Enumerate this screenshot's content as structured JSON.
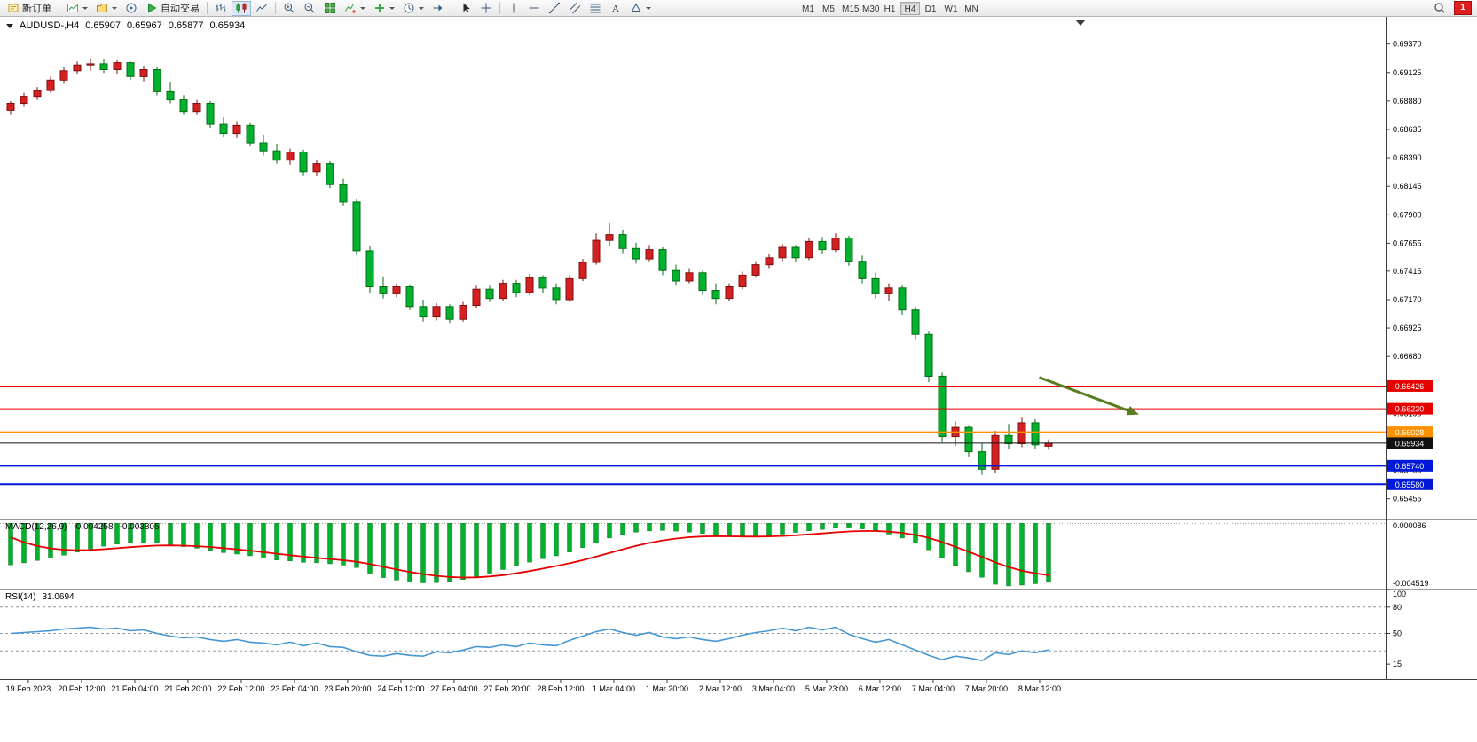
{
  "toolbar": {
    "items": [
      {
        "type": "button",
        "name": "new-order-button",
        "icon": "neworder",
        "label": "新订单"
      },
      {
        "type": "sep"
      },
      {
        "type": "icon",
        "name": "new-chart-button",
        "icon": "newchart",
        "dropdown": true
      },
      {
        "type": "icon",
        "name": "profiles-button",
        "icon": "profiles",
        "dropdown": true
      },
      {
        "type": "icon",
        "name": "market-watch-button",
        "icon": "market"
      },
      {
        "type": "button",
        "name": "auto-trading-button",
        "icon": "autotrade",
        "label": "自动交易"
      },
      {
        "type": "sep"
      },
      {
        "type": "icon",
        "name": "bar-chart-button",
        "icon": "bars"
      },
      {
        "type": "icon",
        "name": "candlestick-chart-button",
        "icon": "candles",
        "active": true
      },
      {
        "type": "icon",
        "name": "line-chart-button",
        "icon": "linechart"
      },
      {
        "type": "sep"
      },
      {
        "type": "icon",
        "name": "zoom-in-button",
        "icon": "zoomin"
      },
      {
        "type": "icon",
        "name": "zoom-out-button",
        "icon": "zoomout"
      },
      {
        "type": "icon",
        "name": "tile-windows-button",
        "icon": "tile"
      },
      {
        "type": "icon",
        "name": "indicators-button",
        "icon": "indicators",
        "dropdown": true
      },
      {
        "type": "icon",
        "name": "add-indicator-button",
        "icon": "plus",
        "dropdown": true
      },
      {
        "type": "icon",
        "name": "auto-scroll-button",
        "icon": "clock",
        "dropdown": true
      },
      {
        "type": "icon",
        "name": "chart-shift-button",
        "icon": "shift"
      },
      {
        "type": "sep"
      },
      {
        "type": "icon",
        "name": "cursor-button",
        "icon": "cursor"
      },
      {
        "type": "icon",
        "name": "crosshair-button",
        "icon": "crosshair"
      },
      {
        "type": "sep"
      },
      {
        "type": "icon",
        "name": "vertical-line-button",
        "icon": "vline"
      },
      {
        "type": "icon",
        "name": "horizontal-line-button",
        "icon": "hline"
      },
      {
        "type": "icon",
        "name": "trendline-button",
        "icon": "trend"
      },
      {
        "type": "icon",
        "name": "equidistant-channel-button",
        "icon": "channel"
      },
      {
        "type": "icon",
        "name": "fibonacci-button",
        "icon": "fibo"
      },
      {
        "type": "icon",
        "name": "text-label-button",
        "icon": "text"
      },
      {
        "type": "icon",
        "name": "arrows-button",
        "icon": "shapes",
        "dropdown": true
      },
      {
        "type": "gap"
      },
      {
        "type": "timeframes"
      }
    ],
    "timeframes": [
      "M1",
      "M5",
      "M15",
      "M30",
      "H1",
      "H4",
      "D1",
      "W1",
      "MN"
    ],
    "active_timeframe": "H4",
    "notification_count": "1"
  },
  "chart": {
    "title": "AUDUSD-,H4",
    "ohlc": {
      "open": "0.65907",
      "high": "0.65967",
      "low": "0.65877",
      "close": "0.65934"
    }
  },
  "chart_data": {
    "type": "candlestick",
    "symbol": "AUDUSD-",
    "period": "H4",
    "price_range": {
      "max": 0.6952,
      "min": 0.653
    },
    "price_axis_ticks": [
      0.6937,
      0.69125,
      0.6888,
      0.68635,
      0.6839,
      0.68145,
      0.679,
      0.67655,
      0.67415,
      0.6717,
      0.66925,
      0.6668,
      0.66435,
      0.6619,
      0.65945,
      0.657,
      0.65455
    ],
    "candles": [
      [
        0.688,
        0.6888,
        0.6876,
        0.6886
      ],
      [
        0.6886,
        0.6895,
        0.6883,
        0.6892
      ],
      [
        0.6892,
        0.69,
        0.6889,
        0.6897
      ],
      [
        0.6897,
        0.6909,
        0.6895,
        0.6906
      ],
      [
        0.6906,
        0.6917,
        0.6903,
        0.6914
      ],
      [
        0.6914,
        0.6922,
        0.6911,
        0.6919
      ],
      [
        0.6919,
        0.6925,
        0.6914,
        0.692
      ],
      [
        0.692,
        0.6924,
        0.6912,
        0.6915
      ],
      [
        0.6915,
        0.6923,
        0.6911,
        0.6921
      ],
      [
        0.6921,
        0.6922,
        0.6906,
        0.6909
      ],
      [
        0.6909,
        0.6918,
        0.6905,
        0.6915
      ],
      [
        0.6915,
        0.6917,
        0.6893,
        0.6896
      ],
      [
        0.6896,
        0.6904,
        0.6886,
        0.6889
      ],
      [
        0.6889,
        0.6893,
        0.6876,
        0.6879
      ],
      [
        0.6879,
        0.6889,
        0.6876,
        0.6886
      ],
      [
        0.6886,
        0.6888,
        0.6865,
        0.6868
      ],
      [
        0.6868,
        0.6874,
        0.6857,
        0.686
      ],
      [
        0.686,
        0.687,
        0.6856,
        0.6867
      ],
      [
        0.6867,
        0.6869,
        0.6849,
        0.6852
      ],
      [
        0.6852,
        0.6859,
        0.6841,
        0.6845
      ],
      [
        0.6845,
        0.6851,
        0.6834,
        0.6837
      ],
      [
        0.6837,
        0.6847,
        0.6833,
        0.6844
      ],
      [
        0.6844,
        0.6846,
        0.6824,
        0.6827
      ],
      [
        0.6827,
        0.6837,
        0.6823,
        0.6834
      ],
      [
        0.6834,
        0.6836,
        0.6813,
        0.6816
      ],
      [
        0.6816,
        0.6821,
        0.6798,
        0.6801
      ],
      [
        0.6801,
        0.6804,
        0.6755,
        0.6759
      ],
      [
        0.6759,
        0.6763,
        0.6723,
        0.6728
      ],
      [
        0.6728,
        0.6737,
        0.6718,
        0.6722
      ],
      [
        0.6722,
        0.6731,
        0.6719,
        0.6728
      ],
      [
        0.6728,
        0.673,
        0.6708,
        0.6711
      ],
      [
        0.6711,
        0.6717,
        0.6698,
        0.6702
      ],
      [
        0.6702,
        0.6714,
        0.6699,
        0.6711
      ],
      [
        0.6711,
        0.6713,
        0.6697,
        0.67
      ],
      [
        0.67,
        0.6715,
        0.6698,
        0.6712
      ],
      [
        0.6712,
        0.6729,
        0.671,
        0.6726
      ],
      [
        0.6726,
        0.6729,
        0.6715,
        0.6718
      ],
      [
        0.6718,
        0.6734,
        0.6716,
        0.6731
      ],
      [
        0.6731,
        0.6734,
        0.6719,
        0.6723
      ],
      [
        0.6723,
        0.6739,
        0.6721,
        0.6736
      ],
      [
        0.6736,
        0.6738,
        0.6723,
        0.6727
      ],
      [
        0.6727,
        0.6731,
        0.6713,
        0.6717
      ],
      [
        0.6717,
        0.6738,
        0.6715,
        0.6735
      ],
      [
        0.6735,
        0.6752,
        0.6733,
        0.6749
      ],
      [
        0.6749,
        0.6774,
        0.6747,
        0.6768
      ],
      [
        0.6768,
        0.6783,
        0.6763,
        0.6773
      ],
      [
        0.6773,
        0.6777,
        0.6757,
        0.6761
      ],
      [
        0.6761,
        0.6766,
        0.6748,
        0.6752
      ],
      [
        0.6752,
        0.6764,
        0.675,
        0.676
      ],
      [
        0.676,
        0.6762,
        0.6738,
        0.6742
      ],
      [
        0.6742,
        0.6747,
        0.6729,
        0.6733
      ],
      [
        0.6733,
        0.6744,
        0.6731,
        0.674
      ],
      [
        0.674,
        0.6742,
        0.6721,
        0.6725
      ],
      [
        0.6725,
        0.6731,
        0.6713,
        0.6718
      ],
      [
        0.6718,
        0.6731,
        0.6716,
        0.6728
      ],
      [
        0.6728,
        0.6741,
        0.6726,
        0.6738
      ],
      [
        0.6738,
        0.675,
        0.6736,
        0.6747
      ],
      [
        0.6747,
        0.6756,
        0.6744,
        0.6753
      ],
      [
        0.6753,
        0.6765,
        0.675,
        0.6762
      ],
      [
        0.6762,
        0.6764,
        0.6749,
        0.6753
      ],
      [
        0.6753,
        0.677,
        0.6751,
        0.6767
      ],
      [
        0.6767,
        0.6771,
        0.6756,
        0.676
      ],
      [
        0.676,
        0.6774,
        0.6758,
        0.677
      ],
      [
        0.677,
        0.6772,
        0.6746,
        0.675
      ],
      [
        0.675,
        0.6755,
        0.6731,
        0.6735
      ],
      [
        0.6735,
        0.674,
        0.6718,
        0.6722
      ],
      [
        0.6722,
        0.6731,
        0.6716,
        0.6727
      ],
      [
        0.6727,
        0.6729,
        0.6704,
        0.6708
      ],
      [
        0.6708,
        0.6711,
        0.6683,
        0.6687
      ],
      [
        0.6687,
        0.669,
        0.6646,
        0.6651
      ],
      [
        0.6651,
        0.6654,
        0.6594,
        0.6599
      ],
      [
        0.6599,
        0.6612,
        0.6591,
        0.6607
      ],
      [
        0.6607,
        0.6609,
        0.6582,
        0.6586
      ],
      [
        0.6586,
        0.6593,
        0.6566,
        0.6571
      ],
      [
        0.6571,
        0.6604,
        0.6568,
        0.66
      ],
      [
        0.66,
        0.661,
        0.6588,
        0.6593
      ],
      [
        0.6593,
        0.6616,
        0.659,
        0.6611
      ],
      [
        0.6611,
        0.6614,
        0.6588,
        0.6592
      ],
      [
        0.65907,
        0.65967,
        0.65877,
        0.65934
      ]
    ],
    "hlines": [
      {
        "price": 0.66426,
        "label": "0.66426",
        "color": "#e60000",
        "width": 1
      },
      {
        "price": 0.6623,
        "label": "0.66230",
        "color": "#e60000",
        "width": 1
      },
      {
        "price": 0.66028,
        "label": "0.66028",
        "color": "#ff9000",
        "width": 2
      },
      {
        "price": 0.65934,
        "label": "0.65934",
        "color": "#111111",
        "width": 1
      },
      {
        "price": 0.6574,
        "label": "0.65740",
        "color": "#0018d8",
        "width": 2
      },
      {
        "price": 0.6558,
        "label": "0.65580",
        "color": "#0018d8",
        "width": 2
      }
    ],
    "trend_arrow": {
      "from": {
        "index": 77.3,
        "price": 0.665
      },
      "to": {
        "index": 84.8,
        "price": 0.6618
      },
      "color": "#567d1e"
    },
    "time_labels": [
      "19 Feb 2023",
      "20 Feb 12:00",
      "21 Feb 04:00",
      "21 Feb 20:00",
      "22 Feb 12:00",
      "23 Feb 04:00",
      "23 Feb 20:00",
      "24 Feb 12:00",
      "27 Feb 04:00",
      "27 Feb 20:00",
      "28 Feb 12:00",
      "1 Mar 04:00",
      "1 Mar 20:00",
      "2 Mar 12:00",
      "3 Mar 04:00",
      "5 Mar 23:00",
      "6 Mar 12:00",
      "7 Mar 04:00",
      "7 Mar 20:00",
      "8 Mar 12:00"
    ],
    "macd": {
      "params": "MACD(12,26,9)",
      "value_label": "-0.004258",
      "signal_label": "-0.003805",
      "axis_max": 8.6e-05,
      "axis_min": -0.004519,
      "axis_max_label": "0.000086",
      "axis_min_label": "-0.004519",
      "signal_seed": -0.0005,
      "values": [
        -0.003,
        -0.00285,
        -0.00268,
        -0.0025,
        -0.0023,
        -0.00208,
        -0.00185,
        -0.00165,
        -0.0015,
        -0.00142,
        -0.00138,
        -0.00142,
        -0.00152,
        -0.00168,
        -0.0018,
        -0.00195,
        -0.00212,
        -0.00222,
        -0.00235,
        -0.0025,
        -0.00265,
        -0.00272,
        -0.00282,
        -0.00285,
        -0.00292,
        -0.00302,
        -0.0032,
        -0.0036,
        -0.00392,
        -0.0041,
        -0.00422,
        -0.0043,
        -0.00428,
        -0.0042,
        -0.00406,
        -0.00385,
        -0.0036,
        -0.00334,
        -0.00308,
        -0.0028,
        -0.00255,
        -0.00235,
        -0.00208,
        -0.00175,
        -0.0014,
        -0.00106,
        -0.0008,
        -0.00064,
        -0.00055,
        -0.00052,
        -0.00056,
        -0.00063,
        -0.00073,
        -0.00086,
        -0.00096,
        -0.001,
        -0.00098,
        -0.0009,
        -0.00078,
        -0.00066,
        -0.00054,
        -0.00044,
        -0.00035,
        -0.00034,
        -0.0004,
        -0.00056,
        -0.00078,
        -0.00106,
        -0.00142,
        -0.00192,
        -0.00252,
        -0.00306,
        -0.0035,
        -0.0039,
        -0.0044,
        -0.004519,
        -0.00446,
        -0.00436,
        -0.004258
      ]
    },
    "rsi": {
      "params": "RSI(14)",
      "value_label": "31.0694",
      "levels": [
        80,
        50,
        30
      ],
      "axis_labels": [
        {
          "value": 100,
          "label": "100"
        },
        {
          "value": 80,
          "label": "80"
        },
        {
          "value": 50,
          "label": "50"
        },
        {
          "value": 15,
          "label": "15"
        }
      ],
      "values": [
        50,
        51,
        52,
        53,
        55,
        56,
        57,
        55,
        56,
        53,
        54,
        50,
        47,
        45,
        46,
        43,
        41,
        43,
        40,
        39,
        37,
        40,
        36,
        39,
        35,
        34,
        29,
        25,
        24,
        27,
        25,
        24,
        29,
        28,
        31,
        35,
        34,
        37,
        35,
        39,
        37,
        36,
        42,
        47,
        52,
        55,
        51,
        48,
        51,
        46,
        44,
        46,
        43,
        41,
        44,
        48,
        51,
        53,
        56,
        53,
        57,
        54,
        57,
        49,
        44,
        40,
        43,
        37,
        31,
        25,
        20,
        24,
        22,
        19,
        28,
        26,
        30,
        28,
        31.0694
      ]
    },
    "colors": {
      "up": "#d42020",
      "up_dark": "#7d0f0f",
      "down": "#00b22d",
      "down_dark": "#046b14",
      "macd_hist": "#00b22d",
      "macd_signal": "#e60000",
      "rsi_line": "#4596d2"
    }
  }
}
